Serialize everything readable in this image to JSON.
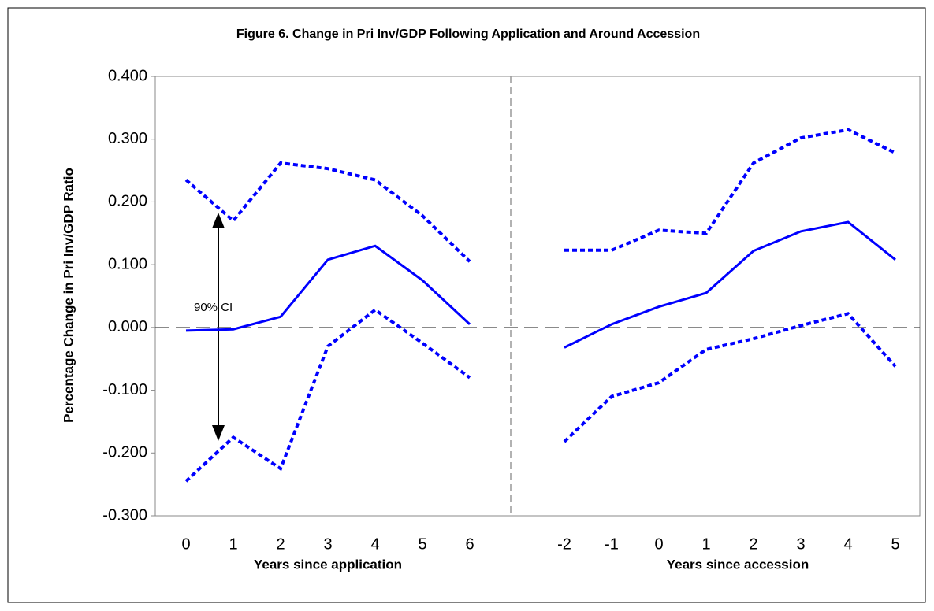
{
  "chart_data": {
    "type": "line",
    "title": "Figure 6. Change in Pri Inv/GDP Following Application and Around Accession",
    "y_label": "Percentage Change in Pri Inv/GDP Ratio",
    "x_labels": [
      "Years since application",
      "Years since accession"
    ],
    "annotation": "90% CI",
    "categories": [
      "0",
      "1",
      "2",
      "3",
      "4",
      "5",
      "6",
      null,
      "-2",
      "-1",
      "0",
      "1",
      "2",
      "3",
      "4",
      "5"
    ],
    "series": [
      {
        "color": "#0000ff",
        "style": "solid",
        "values": [
          -0.005,
          -0.003,
          0.017,
          0.108,
          0.13,
          0.075,
          0.005,
          null,
          -0.032,
          0.005,
          0.033,
          0.055,
          0.122,
          0.153,
          0.168,
          0.108
        ]
      },
      {
        "color": "#0000ff",
        "style": "dotted",
        "values": [
          0.235,
          0.17,
          0.262,
          0.253,
          0.235,
          0.178,
          0.105,
          null,
          0.123,
          0.123,
          0.155,
          0.15,
          0.262,
          0.302,
          0.315,
          0.278
        ]
      },
      {
        "color": "#0000ff",
        "style": "dotted",
        "values": [
          -0.245,
          -0.175,
          -0.225,
          -0.03,
          0.028,
          -0.025,
          -0.08,
          null,
          -0.182,
          -0.11,
          -0.088,
          -0.035,
          -0.018,
          0.003,
          0.022,
          -0.062
        ]
      }
    ],
    "ylim": [
      -0.3,
      0.4
    ],
    "yticks": [
      {
        "value": -0.3,
        "label": "-0.300"
      },
      {
        "value": -0.2,
        "label": "-0.200"
      },
      {
        "value": -0.1,
        "label": "-0.100"
      },
      {
        "value": 0,
        "label": "0.000"
      },
      {
        "value": 0.1,
        "label": "0.100"
      },
      {
        "value": 0.2,
        "label": "0.200"
      },
      {
        "value": 0.3,
        "label": "0.300"
      },
      {
        "value": 0.4,
        "label": "0.400"
      }
    ],
    "zero_line": true,
    "grid": false
  }
}
